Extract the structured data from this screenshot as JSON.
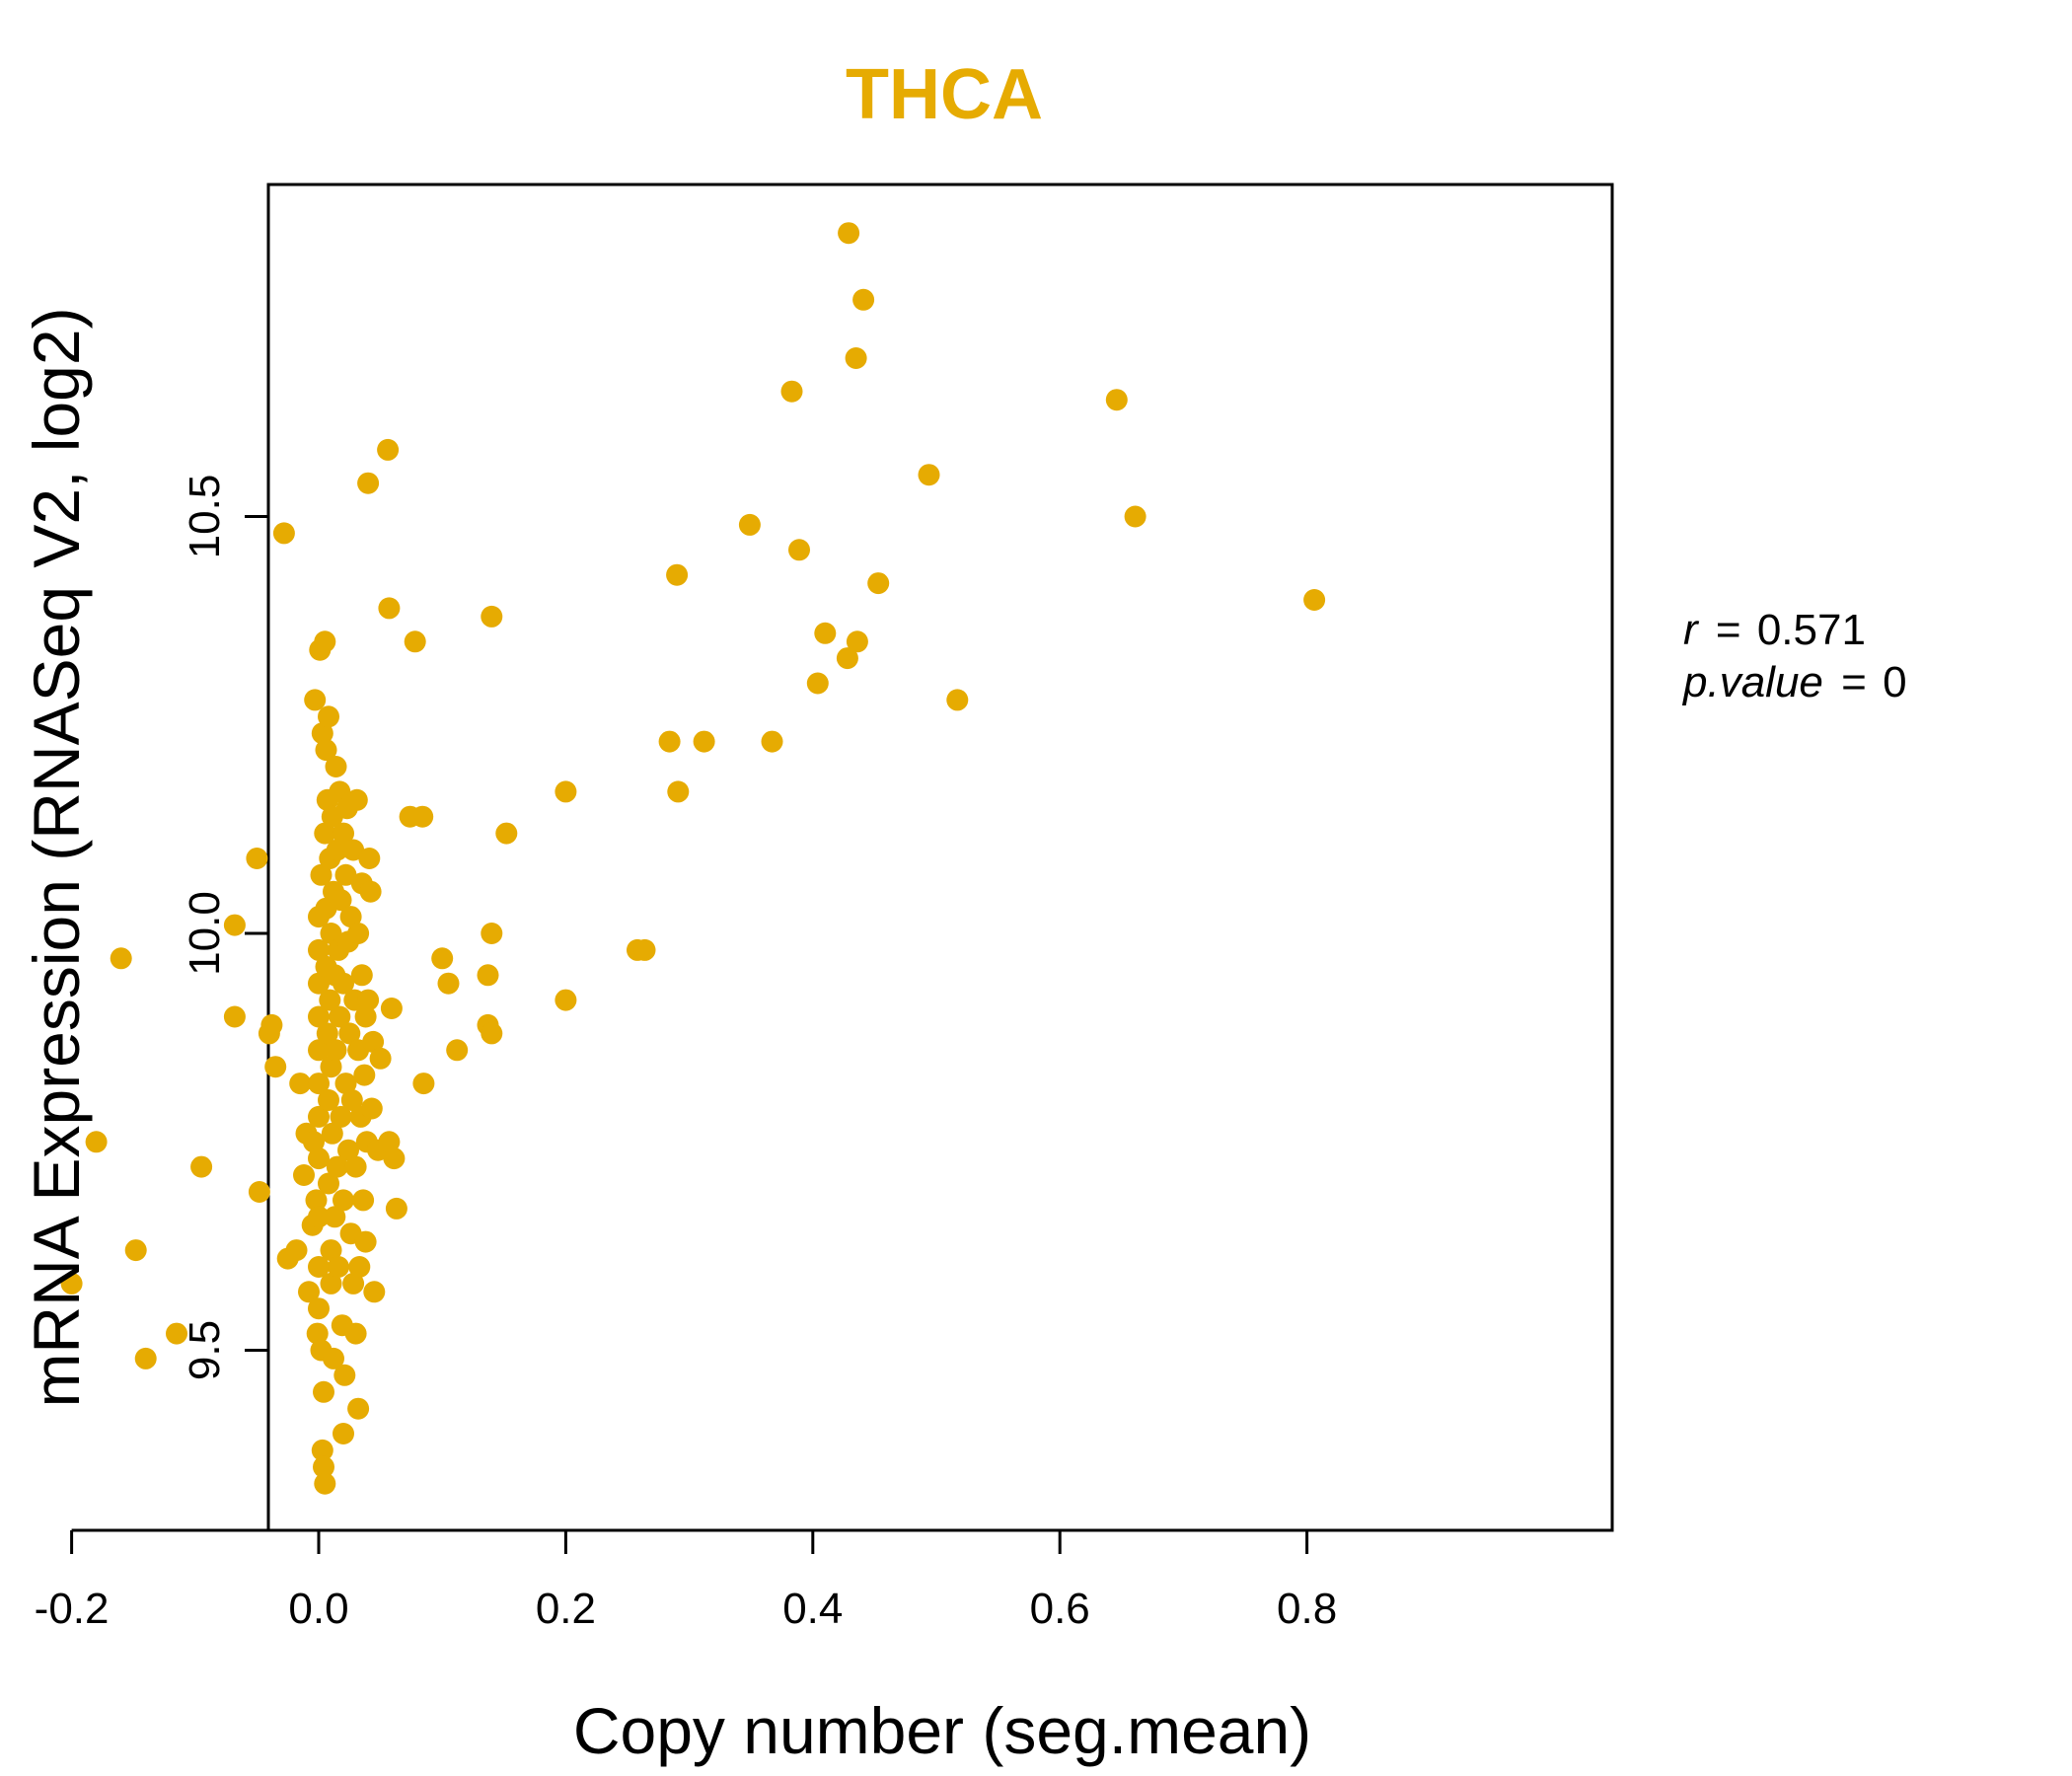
{
  "colors": {
    "point": "#E6AB02",
    "title": "#E6AB02",
    "axis": "#000000"
  },
  "chart_data": {
    "type": "scatter",
    "title": "THCA",
    "xlabel": "Copy number (seg.mean)",
    "ylabel": "mRNA Expression (RNASeq V2, log2)",
    "xlim": [
      -0.25,
      0.84
    ],
    "ylim": [
      9.32,
      10.93
    ],
    "xticks": [
      -0.2,
      0.0,
      0.2,
      0.4,
      0.6,
      0.8
    ],
    "xtick_labels": [
      "-0.2",
      "0.0",
      "0.2",
      "0.4",
      "0.6",
      "0.8"
    ],
    "yticks": [
      9.5,
      10.0,
      10.5
    ],
    "ytick_labels": [
      "9.5",
      "10.0",
      "10.5"
    ],
    "grid": false,
    "stats": {
      "r_label": "r",
      "r_value": "0.571",
      "p_label": "p.value",
      "p_value": "0"
    },
    "points": [
      [
        -0.2,
        9.58
      ],
      [
        -0.18,
        9.75
      ],
      [
        -0.16,
        9.97
      ],
      [
        -0.148,
        9.62
      ],
      [
        -0.14,
        9.49
      ],
      [
        -0.115,
        9.52
      ],
      [
        -0.095,
        9.72
      ],
      [
        -0.068,
        10.01
      ],
      [
        -0.068,
        9.9
      ],
      [
        -0.05,
        10.09
      ],
      [
        -0.048,
        9.69
      ],
      [
        -0.04,
        9.88
      ],
      [
        -0.038,
        9.89
      ],
      [
        -0.035,
        9.84
      ],
      [
        -0.028,
        10.48
      ],
      [
        -0.025,
        9.61
      ],
      [
        -0.018,
        9.62
      ],
      [
        -0.015,
        9.82
      ],
      [
        -0.012,
        9.71
      ],
      [
        -0.01,
        9.76
      ],
      [
        -0.008,
        9.57
      ],
      [
        -0.005,
        9.65
      ],
      [
        -0.004,
        9.75
      ],
      [
        -0.003,
        10.28
      ],
      [
        -0.002,
        9.68
      ],
      [
        -0.001,
        9.52
      ],
      [
        0.0,
        10.02
      ],
      [
        0.0,
        9.98
      ],
      [
        0.0,
        9.94
      ],
      [
        0.0,
        9.9
      ],
      [
        0.0,
        9.86
      ],
      [
        0.0,
        9.82
      ],
      [
        0.0,
        9.78
      ],
      [
        0.0,
        9.73
      ],
      [
        0.0,
        9.66
      ],
      [
        0.0,
        9.6
      ],
      [
        0.0,
        9.55
      ],
      [
        0.001,
        10.34
      ],
      [
        0.002,
        10.07
      ],
      [
        0.002,
        9.5
      ],
      [
        0.003,
        10.24
      ],
      [
        0.003,
        9.38
      ],
      [
        0.004,
        9.45
      ],
      [
        0.004,
        9.36
      ],
      [
        0.005,
        10.35
      ],
      [
        0.005,
        10.12
      ],
      [
        0.005,
        9.34
      ],
      [
        0.006,
        10.22
      ],
      [
        0.006,
        10.03
      ],
      [
        0.006,
        9.96
      ],
      [
        0.007,
        10.16
      ],
      [
        0.007,
        9.88
      ],
      [
        0.008,
        10.26
      ],
      [
        0.008,
        9.8
      ],
      [
        0.008,
        9.7
      ],
      [
        0.009,
        10.09
      ],
      [
        0.009,
        9.92
      ],
      [
        0.01,
        10.0
      ],
      [
        0.01,
        9.84
      ],
      [
        0.01,
        9.62
      ],
      [
        0.01,
        9.58
      ],
      [
        0.011,
        10.14
      ],
      [
        0.011,
        9.76
      ],
      [
        0.012,
        10.05
      ],
      [
        0.012,
        9.49
      ],
      [
        0.013,
        9.95
      ],
      [
        0.013,
        9.66
      ],
      [
        0.014,
        10.2
      ],
      [
        0.014,
        9.86
      ],
      [
        0.015,
        10.1
      ],
      [
        0.015,
        9.72
      ],
      [
        0.016,
        9.98
      ],
      [
        0.016,
        9.6
      ],
      [
        0.017,
        10.17
      ],
      [
        0.017,
        9.9
      ],
      [
        0.018,
        10.04
      ],
      [
        0.018,
        9.78
      ],
      [
        0.019,
        9.53
      ],
      [
        0.02,
        10.12
      ],
      [
        0.02,
        9.94
      ],
      [
        0.02,
        9.68
      ],
      [
        0.02,
        9.4
      ],
      [
        0.021,
        9.47
      ],
      [
        0.022,
        10.07
      ],
      [
        0.022,
        9.82
      ],
      [
        0.023,
        10.15
      ],
      [
        0.024,
        9.99
      ],
      [
        0.024,
        9.74
      ],
      [
        0.025,
        9.88
      ],
      [
        0.026,
        10.02
      ],
      [
        0.026,
        9.64
      ],
      [
        0.027,
        9.8
      ],
      [
        0.028,
        10.1
      ],
      [
        0.028,
        9.58
      ],
      [
        0.029,
        9.92
      ],
      [
        0.03,
        9.72
      ],
      [
        0.03,
        9.52
      ],
      [
        0.031,
        10.16
      ],
      [
        0.032,
        10.0
      ],
      [
        0.032,
        9.86
      ],
      [
        0.032,
        9.43
      ],
      [
        0.033,
        9.6
      ],
      [
        0.034,
        9.78
      ],
      [
        0.035,
        9.95
      ],
      [
        0.035,
        10.06
      ],
      [
        0.036,
        9.68
      ],
      [
        0.037,
        9.83
      ],
      [
        0.038,
        9.9
      ],
      [
        0.038,
        9.63
      ],
      [
        0.039,
        9.75
      ],
      [
        0.04,
        10.54
      ],
      [
        0.04,
        9.92
      ],
      [
        0.041,
        10.09
      ],
      [
        0.042,
        10.05
      ],
      [
        0.043,
        9.79
      ],
      [
        0.044,
        9.87
      ],
      [
        0.045,
        9.57
      ],
      [
        0.048,
        9.74
      ],
      [
        0.05,
        9.85
      ],
      [
        0.056,
        10.58
      ],
      [
        0.057,
        10.39
      ],
      [
        0.057,
        9.75
      ],
      [
        0.059,
        9.91
      ],
      [
        0.061,
        9.73
      ],
      [
        0.063,
        9.67
      ],
      [
        0.074,
        10.14
      ],
      [
        0.078,
        10.35
      ],
      [
        0.084,
        10.14
      ],
      [
        0.085,
        9.82
      ],
      [
        0.1,
        9.97
      ],
      [
        0.105,
        9.94
      ],
      [
        0.112,
        9.86
      ],
      [
        0.137,
        9.95
      ],
      [
        0.137,
        9.89
      ],
      [
        0.14,
        10.38
      ],
      [
        0.14,
        10.0
      ],
      [
        0.14,
        9.88
      ],
      [
        0.152,
        10.12
      ],
      [
        0.2,
        10.17
      ],
      [
        0.2,
        9.92
      ],
      [
        0.258,
        9.98
      ],
      [
        0.264,
        9.98
      ],
      [
        0.284,
        10.23
      ],
      [
        0.29,
        10.43
      ],
      [
        0.291,
        10.17
      ],
      [
        0.312,
        10.23
      ],
      [
        0.349,
        10.49
      ],
      [
        0.367,
        10.23
      ],
      [
        0.383,
        10.65
      ],
      [
        0.389,
        10.46
      ],
      [
        0.404,
        10.3
      ],
      [
        0.41,
        10.36
      ],
      [
        0.428,
        10.33
      ],
      [
        0.429,
        10.84
      ],
      [
        0.435,
        10.69
      ],
      [
        0.436,
        10.35
      ],
      [
        0.441,
        10.76
      ],
      [
        0.453,
        10.42
      ],
      [
        0.494,
        10.55
      ],
      [
        0.517,
        10.28
      ],
      [
        0.646,
        10.64
      ],
      [
        0.661,
        10.5
      ],
      [
        0.806,
        10.4
      ]
    ]
  }
}
